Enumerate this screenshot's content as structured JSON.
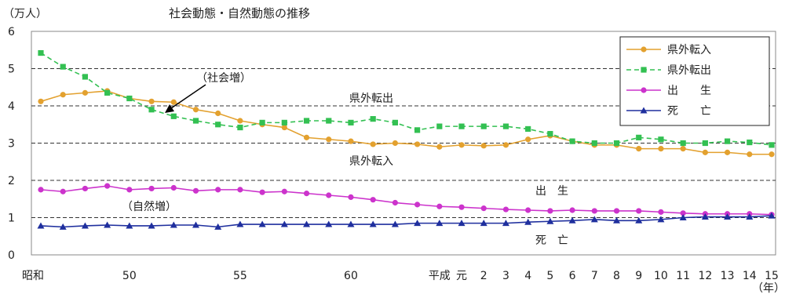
{
  "chart_data": {
    "type": "line",
    "title": "社会動態・自然動態の推移",
    "ylabel": "（万人）",
    "xunit": "（年）",
    "ylim": [
      0,
      6
    ],
    "yticks": [
      "0",
      "1",
      "2",
      "3",
      "4",
      "5",
      "6"
    ],
    "grid": "horizontal dashed",
    "legend_position": "top-right",
    "x_ticks": [
      {
        "i": 0,
        "label": "昭和"
      },
      {
        "i": 4,
        "label": "50"
      },
      {
        "i": 9,
        "label": "55"
      },
      {
        "i": 14,
        "label": "60"
      },
      {
        "i": 18,
        "label": "平成"
      },
      {
        "i": 19,
        "label": "元"
      },
      {
        "i": 20,
        "label": "2"
      },
      {
        "i": 21,
        "label": "3"
      },
      {
        "i": 22,
        "label": "4"
      },
      {
        "i": 23,
        "label": "5"
      },
      {
        "i": 24,
        "label": "6"
      },
      {
        "i": 25,
        "label": "7"
      },
      {
        "i": 26,
        "label": "8"
      },
      {
        "i": 27,
        "label": "9"
      },
      {
        "i": 28,
        "label": "10"
      },
      {
        "i": 29,
        "label": "11"
      },
      {
        "i": 30,
        "label": "12"
      },
      {
        "i": 31,
        "label": "13"
      },
      {
        "i": 32,
        "label": "14"
      },
      {
        "i": 33,
        "label": "15"
      }
    ],
    "series": [
      {
        "name": "県外転入",
        "color": "#e3a12f",
        "marker": "circle",
        "dash": "",
        "values": [
          4.12,
          4.3,
          4.35,
          4.4,
          4.2,
          4.12,
          4.1,
          3.9,
          3.8,
          3.6,
          3.5,
          3.42,
          3.15,
          3.1,
          3.05,
          2.97,
          3.0,
          2.97,
          2.9,
          2.95,
          2.93,
          2.95,
          3.1,
          3.2,
          3.05,
          2.95,
          2.95,
          2.85,
          2.85,
          2.85,
          2.75,
          2.75,
          2.7,
          2.7
        ]
      },
      {
        "name": "県外転出",
        "color": "#33c052",
        "marker": "square",
        "dash": "6,4",
        "values": [
          5.42,
          5.05,
          4.78,
          4.35,
          4.2,
          3.9,
          3.72,
          3.6,
          3.5,
          3.42,
          3.55,
          3.55,
          3.6,
          3.6,
          3.55,
          3.65,
          3.55,
          3.35,
          3.45,
          3.45,
          3.45,
          3.45,
          3.38,
          3.25,
          3.05,
          3.0,
          3.0,
          3.15,
          3.1,
          3.0,
          3.0,
          3.05,
          3.02,
          2.95
        ]
      },
      {
        "name": "出　　生",
        "color": "#cc33cc",
        "marker": "circle",
        "dash": "",
        "values": [
          1.75,
          1.7,
          1.78,
          1.85,
          1.75,
          1.78,
          1.8,
          1.72,
          1.75,
          1.75,
          1.68,
          1.7,
          1.65,
          1.6,
          1.55,
          1.48,
          1.4,
          1.35,
          1.3,
          1.28,
          1.25,
          1.22,
          1.2,
          1.18,
          1.2,
          1.18,
          1.18,
          1.18,
          1.15,
          1.12,
          1.1,
          1.1,
          1.1,
          1.08
        ]
      },
      {
        "name": "死　　亡",
        "color": "#1f2f9e",
        "marker": "triangle",
        "dash": "",
        "values": [
          0.78,
          0.75,
          0.78,
          0.8,
          0.78,
          0.78,
          0.8,
          0.8,
          0.75,
          0.82,
          0.82,
          0.82,
          0.82,
          0.82,
          0.82,
          0.82,
          0.82,
          0.85,
          0.85,
          0.85,
          0.85,
          0.85,
          0.88,
          0.9,
          0.92,
          0.95,
          0.92,
          0.92,
          0.95,
          1.0,
          1.02,
          1.02,
          1.02,
          1.05
        ]
      }
    ],
    "annotations": [
      {
        "id": "tenshutsu",
        "text": "県外転出"
      },
      {
        "id": "tennyu",
        "text": "県外転入"
      },
      {
        "id": "shussei",
        "text": "出　生"
      },
      {
        "id": "shibou",
        "text": "死　亡"
      },
      {
        "id": "social",
        "text": "（社会増）"
      },
      {
        "id": "natural",
        "text": "（自然増）"
      }
    ]
  }
}
